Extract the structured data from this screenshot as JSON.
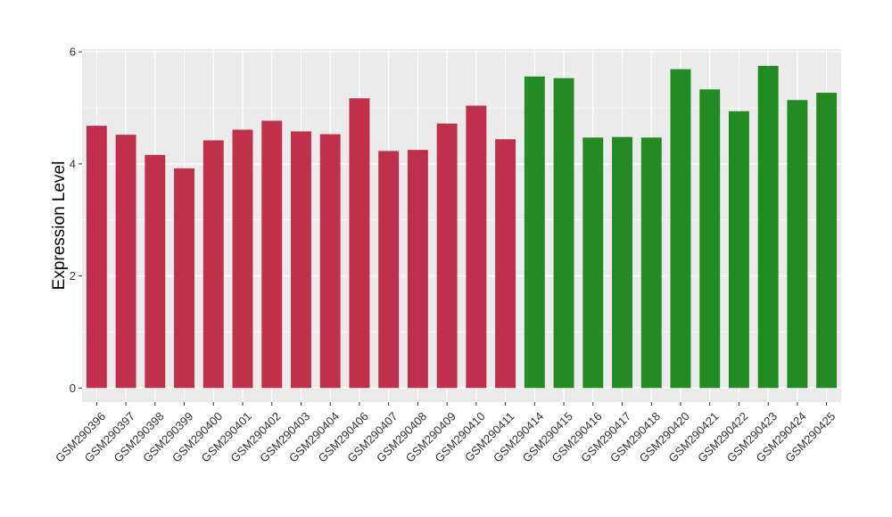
{
  "chart_data": {
    "type": "bar",
    "title": "",
    "xlabel": "",
    "ylabel": "Expression Level",
    "ylim": [
      -0.25,
      6.05
    ],
    "yticks": [
      0,
      2,
      4,
      6
    ],
    "grid": true,
    "legend": "none",
    "categories": [
      "GSM290396",
      "GSM290397",
      "GSM290398",
      "GSM290399",
      "GSM290400",
      "GSM290401",
      "GSM290402",
      "GSM290403",
      "GSM290404",
      "GSM290406",
      "GSM290407",
      "GSM290408",
      "GSM290409",
      "GSM290410",
      "GSM290411",
      "GSM290414",
      "GSM290415",
      "GSM290416",
      "GSM290417",
      "GSM290418",
      "GSM290420",
      "GSM290421",
      "GSM290422",
      "GSM290423",
      "GSM290424",
      "GSM290425"
    ],
    "values": [
      4.68,
      4.52,
      4.16,
      3.92,
      4.42,
      4.61,
      4.77,
      4.58,
      4.53,
      5.17,
      4.23,
      4.25,
      4.72,
      5.04,
      4.44,
      5.56,
      5.53,
      4.47,
      4.48,
      4.47,
      5.69,
      5.33,
      4.94,
      5.75,
      5.14,
      5.27
    ],
    "bar_colors": [
      "#c1304a",
      "#c1304a",
      "#c1304a",
      "#c1304a",
      "#c1304a",
      "#c1304a",
      "#c1304a",
      "#c1304a",
      "#c1304a",
      "#c1304a",
      "#c1304a",
      "#c1304a",
      "#c1304a",
      "#c1304a",
      "#c1304a",
      "#228b22",
      "#228b22",
      "#228b22",
      "#228b22",
      "#228b22",
      "#228b22",
      "#228b22",
      "#228b22",
      "#228b22",
      "#228b22",
      "#228b22"
    ],
    "panel_background": "#ebebeb",
    "grid_color": "#ffffff"
  }
}
